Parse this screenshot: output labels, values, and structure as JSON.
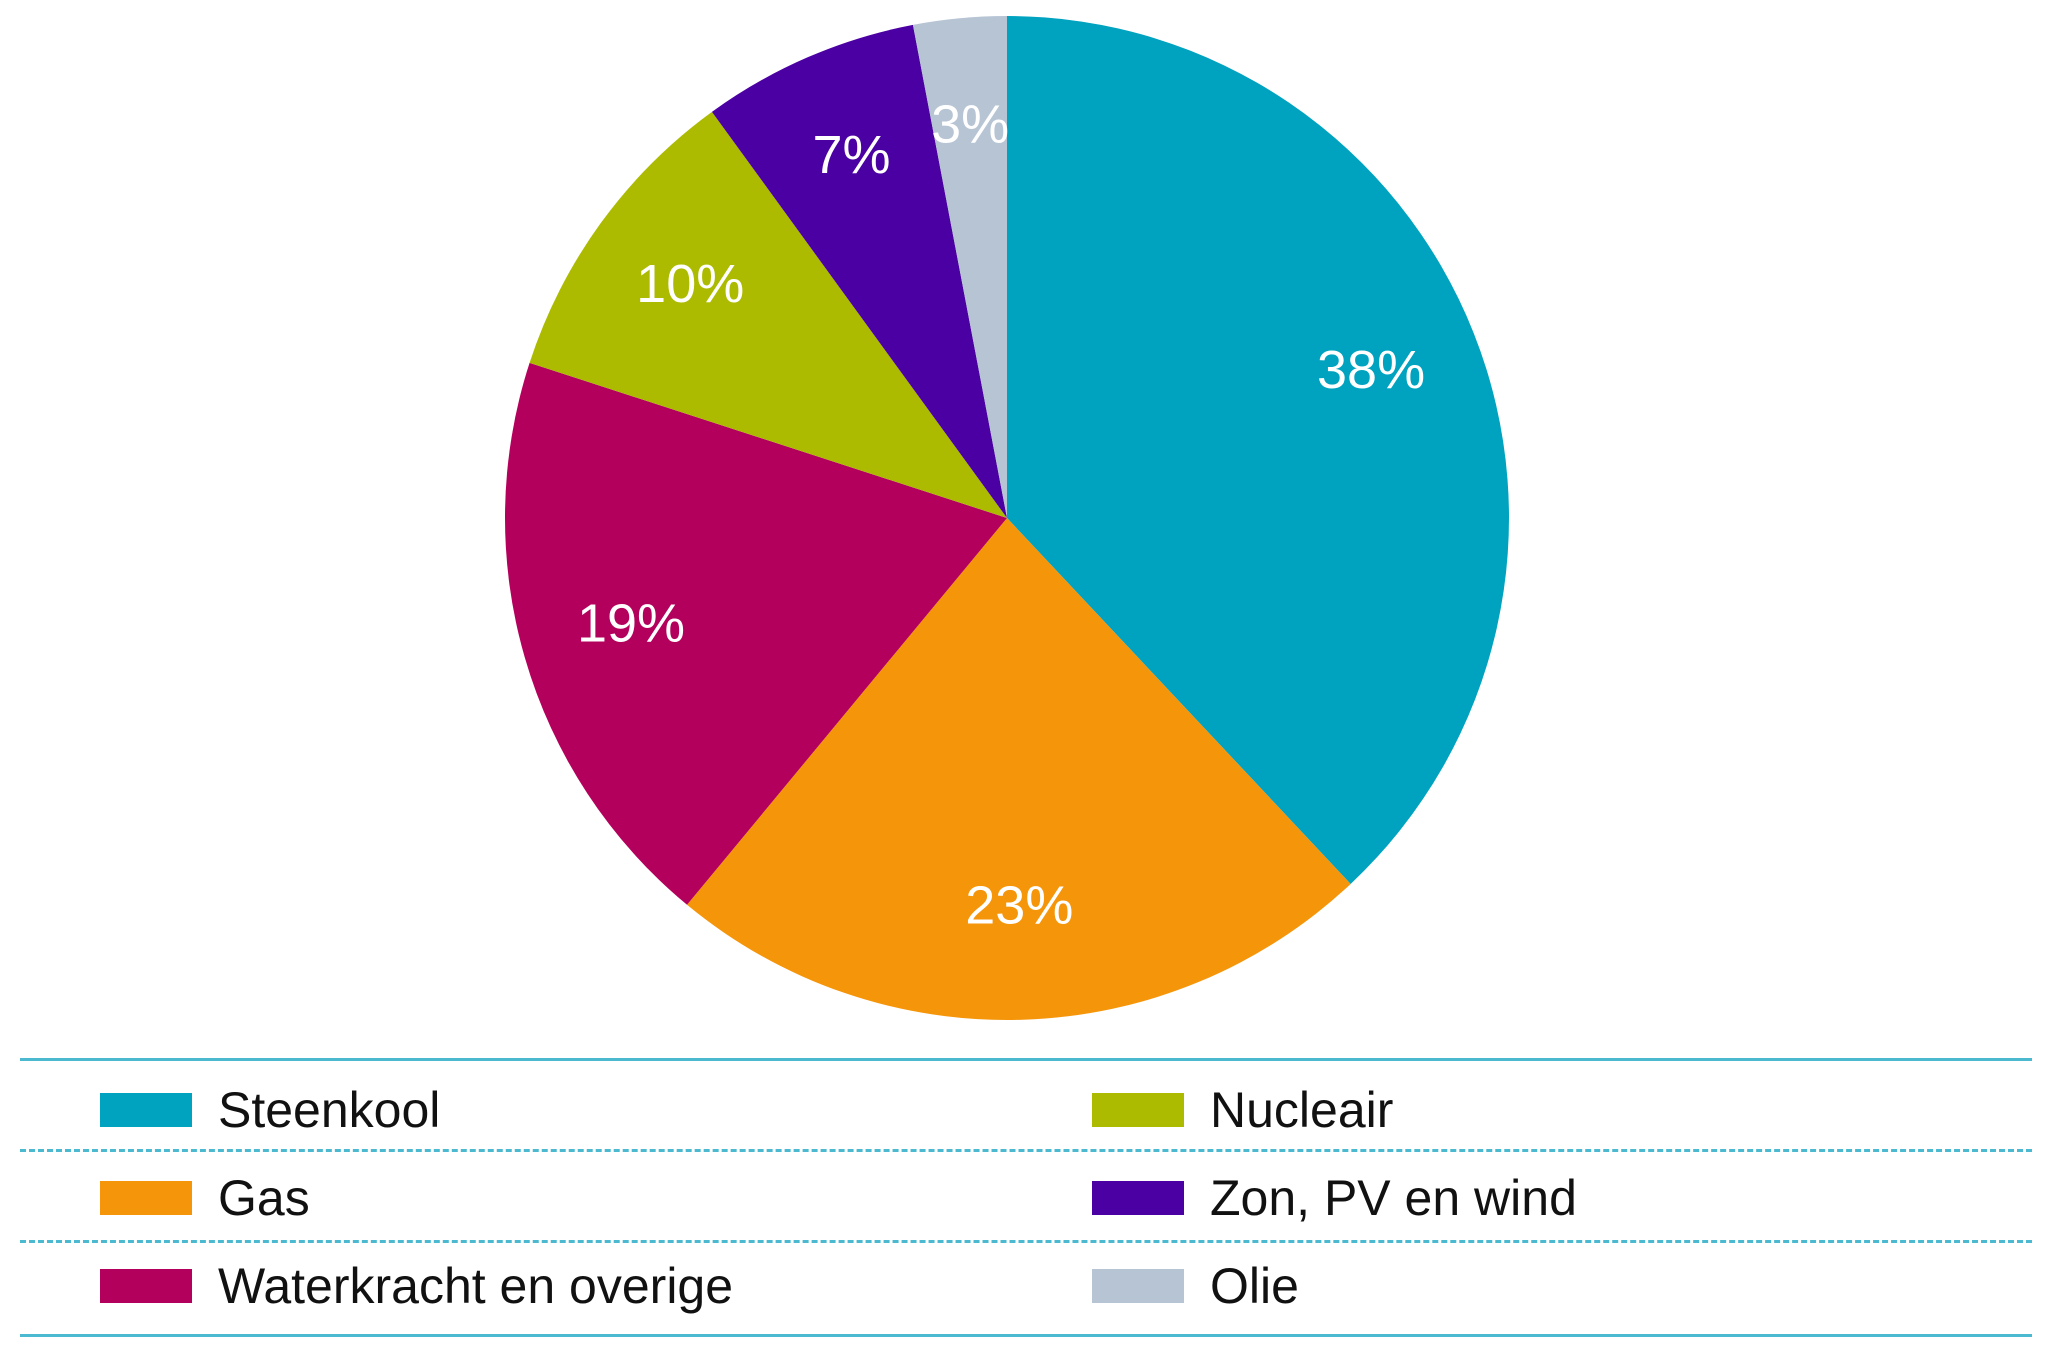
{
  "chart_data": {
    "type": "pie",
    "slices": [
      {
        "label": "Steenkool",
        "value": 38,
        "value_label": "38%",
        "color": "#00a3bf"
      },
      {
        "label": "Gas",
        "value": 23,
        "value_label": "23%",
        "color": "#f5950a"
      },
      {
        "label": "Waterkracht en overige",
        "value": 19,
        "value_label": "19%",
        "color": "#b3005c"
      },
      {
        "label": "Nucleair",
        "value": 10,
        "value_label": "10%",
        "color": "#adbb00"
      },
      {
        "label": "Zon, PV en wind",
        "value": 7,
        "value_label": "7%",
        "color": "#4b00a3"
      },
      {
        "label": "Olie",
        "value": 3,
        "value_label": "3%",
        "color": "#b6c4d4"
      }
    ],
    "legend_placement": "bottom"
  }
}
